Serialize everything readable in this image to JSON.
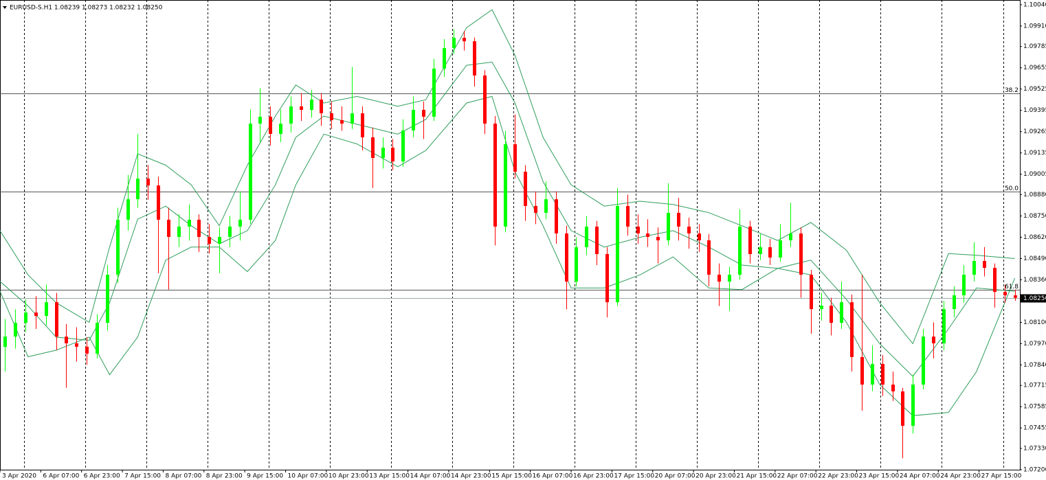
{
  "chart_data": {
    "type": "candlestick",
    "title": "EURUSD-S.H1  1.08239 1.08273 1.08232 1.08250",
    "up_color": "#00ff00",
    "down_color": "#ff0000",
    "band_color": "#2e9d5b",
    "xlim": [
      0,
      400
    ],
    "ylim": [
      1.072,
      1.10069
    ],
    "x": [
      2,
      6,
      10,
      14,
      18,
      22,
      26,
      30,
      34,
      38,
      42,
      46,
      50,
      54,
      58,
      62,
      66,
      70,
      74,
      78,
      82,
      86,
      90,
      94,
      98,
      102,
      106,
      110,
      114,
      118,
      122,
      126,
      130,
      134,
      138,
      142,
      146,
      150,
      154,
      158,
      162,
      166,
      170,
      174,
      178,
      182,
      186,
      190,
      194,
      198,
      202,
      206,
      210,
      214,
      218,
      222,
      226,
      230,
      234,
      238,
      242,
      246,
      250,
      254,
      258,
      262,
      266,
      270,
      274,
      278,
      282,
      286,
      290,
      294,
      298,
      302,
      306,
      310,
      314,
      318,
      322,
      326,
      330,
      334,
      338,
      342,
      346,
      350,
      354,
      358,
      362,
      366,
      370,
      374,
      378,
      382,
      386,
      390,
      394,
      398
    ],
    "candles": [
      [
        1.0795,
        1.0812,
        1.078,
        1.08013
      ],
      [
        1.08013,
        1.0818,
        1.0794,
        1.08097
      ],
      [
        1.08097,
        1.0824,
        1.0804,
        1.0816
      ],
      [
        1.0816,
        1.0826,
        1.0806,
        1.08139
      ],
      [
        1.08139,
        1.0833,
        1.0808,
        1.08223
      ],
      [
        1.08223,
        1.0828,
        1.0793,
        1.08013
      ],
      [
        1.08013,
        1.0809,
        1.077,
        1.07972
      ],
      [
        1.07972,
        1.0807,
        1.0786,
        1.07951
      ],
      [
        1.07951,
        1.0801,
        1.0784,
        1.07909
      ],
      [
        1.07909,
        1.0815,
        1.0788,
        1.08097
      ],
      [
        1.08097,
        1.0845,
        1.0805,
        1.08391
      ],
      [
        1.08391,
        1.088,
        1.0834,
        1.08727
      ],
      [
        1.08727,
        1.09,
        1.0866,
        1.08852
      ],
      [
        1.08852,
        1.0925,
        1.088,
        1.08978
      ],
      [
        1.08978,
        1.0906,
        1.0885,
        1.08936
      ],
      [
        1.08936,
        1.0899,
        1.084,
        1.08727
      ],
      [
        1.08727,
        1.088,
        1.083,
        1.08622
      ],
      [
        1.08622,
        1.0876,
        1.0856,
        1.08685
      ],
      [
        1.08685,
        1.0882,
        1.086,
        1.08727
      ],
      [
        1.08727,
        1.0876,
        1.0853,
        1.08622
      ],
      [
        1.08622,
        1.087,
        1.0852,
        1.0858
      ],
      [
        1.0858,
        1.0868,
        1.084,
        1.08622
      ],
      [
        1.08622,
        1.0875,
        1.0856,
        1.08685
      ],
      [
        1.08685,
        1.089,
        1.086,
        1.08727
      ],
      [
        1.08727,
        1.094,
        1.087,
        1.09314
      ],
      [
        1.09314,
        1.0953,
        1.092,
        1.09356
      ],
      [
        1.09356,
        1.0942,
        1.0918,
        1.09251
      ],
      [
        1.09251,
        1.094,
        1.092,
        1.09314
      ],
      [
        1.09314,
        1.0948,
        1.0926,
        1.09419
      ],
      [
        1.09419,
        1.095,
        1.0933,
        1.09398
      ],
      [
        1.09398,
        1.0952,
        1.0935,
        1.09461
      ],
      [
        1.09461,
        1.095,
        1.093,
        1.09377
      ],
      [
        1.09377,
        1.0945,
        1.0928,
        1.09335
      ],
      [
        1.09335,
        1.0942,
        1.0927,
        1.09314
      ],
      [
        1.09314,
        1.0966,
        1.0928,
        1.09377
      ],
      [
        1.09377,
        1.0942,
        1.0915,
        1.0923
      ],
      [
        1.0923,
        1.0929,
        1.0892,
        1.09104
      ],
      [
        1.09104,
        1.0923,
        1.0904,
        1.09167
      ],
      [
        1.09167,
        1.0922,
        1.0903,
        1.09083
      ],
      [
        1.09083,
        1.0934,
        1.0905,
        1.09272
      ],
      [
        1.09272,
        1.0948,
        1.0923,
        1.09398
      ],
      [
        1.09398,
        1.0945,
        1.0922,
        1.09356
      ],
      [
        1.09356,
        1.0971,
        1.0933,
        1.0965
      ],
      [
        1.0965,
        1.0983,
        1.096,
        1.09775
      ],
      [
        1.09775,
        1.0989,
        1.0974,
        1.09838
      ],
      [
        1.09838,
        1.0988,
        1.0976,
        1.09817
      ],
      [
        1.09817,
        1.0984,
        1.0954,
        1.09608
      ],
      [
        1.09608,
        1.0964,
        1.0925,
        1.09314
      ],
      [
        1.09314,
        1.0936,
        1.0857,
        1.08685
      ],
      [
        1.08685,
        1.0927,
        1.0865,
        1.09188
      ],
      [
        1.09188,
        1.0937,
        1.0898,
        1.0902
      ],
      [
        1.0902,
        1.0906,
        1.0872,
        1.08811
      ],
      [
        1.08811,
        1.089,
        1.087,
        1.08769
      ],
      [
        1.08769,
        1.0896,
        1.0873,
        1.08852
      ],
      [
        1.08852,
        1.089,
        1.0858,
        1.08643
      ],
      [
        1.08643,
        1.0869,
        1.0818,
        1.08349
      ],
      [
        1.08349,
        1.0862,
        1.0832,
        1.08559
      ],
      [
        1.08559,
        1.0875,
        1.0851,
        1.08685
      ],
      [
        1.08685,
        1.0872,
        1.0845,
        1.08517
      ],
      [
        1.08517,
        1.0856,
        1.0813,
        1.08223
      ],
      [
        1.08223,
        1.0892,
        1.082,
        1.08811
      ],
      [
        1.08811,
        1.0888,
        1.0863,
        1.08685
      ],
      [
        1.08685,
        1.0876,
        1.0858,
        1.08643
      ],
      [
        1.08643,
        1.0873,
        1.0856,
        1.08622
      ],
      [
        1.08622,
        1.0868,
        1.0846,
        1.08601
      ],
      [
        1.08601,
        1.0895,
        1.0857,
        1.08769
      ],
      [
        1.08769,
        1.0886,
        1.086,
        1.08685
      ],
      [
        1.08685,
        1.0874,
        1.0855,
        1.08643
      ],
      [
        1.08643,
        1.087,
        1.0853,
        1.08601
      ],
      [
        1.08601,
        1.0864,
        1.0832,
        1.08391
      ],
      [
        1.08391,
        1.0846,
        1.082,
        1.08349
      ],
      [
        1.08349,
        1.0844,
        1.0817,
        1.08391
      ],
      [
        1.08391,
        1.0879,
        1.0836,
        1.08685
      ],
      [
        1.08685,
        1.0872,
        1.0846,
        1.08517
      ],
      [
        1.08517,
        1.0864,
        1.0848,
        1.08559
      ],
      [
        1.08559,
        1.0861,
        1.0845,
        1.08496
      ],
      [
        1.08496,
        1.087,
        1.0847,
        1.08601
      ],
      [
        1.08601,
        1.0883,
        1.0856,
        1.08643
      ],
      [
        1.08643,
        1.0868,
        1.0825,
        1.08391
      ],
      [
        1.08391,
        1.0842,
        1.0803,
        1.08181
      ],
      [
        1.08181,
        1.0828,
        1.0811,
        1.08202
      ],
      [
        1.08202,
        1.0825,
        1.0802,
        1.08097
      ],
      [
        1.08097,
        1.0835,
        1.0806,
        1.08223
      ],
      [
        1.08223,
        1.0827,
        1.078,
        1.07888
      ],
      [
        1.07888,
        1.0839,
        1.0756,
        1.0772
      ],
      [
        1.0772,
        1.0796,
        1.0768,
        1.07846
      ],
      [
        1.07846,
        1.079,
        1.0765,
        1.0772
      ],
      [
        1.0772,
        1.078,
        1.0762,
        1.07678
      ],
      [
        1.07678,
        1.077,
        1.0727,
        1.07468
      ],
      [
        1.07468,
        1.0778,
        1.0742,
        1.0772
      ],
      [
        1.0772,
        1.0806,
        1.0769,
        1.08013
      ],
      [
        1.08013,
        1.081,
        1.0788,
        1.07972
      ],
      [
        1.07972,
        1.0823,
        1.0793,
        1.08181
      ],
      [
        1.08181,
        1.0832,
        1.0813,
        1.08265
      ],
      [
        1.08265,
        1.0845,
        1.0822,
        1.08391
      ],
      [
        1.08391,
        1.0859,
        1.0835,
        1.08475
      ],
      [
        1.08475,
        1.0856,
        1.0838,
        1.08433
      ],
      [
        1.08433,
        1.0846,
        1.0819,
        1.08286
      ],
      [
        1.08286,
        1.0833,
        1.0822,
        1.08265
      ],
      [
        1.08265,
        1.083,
        1.08232,
        1.0825
      ]
    ],
    "line_x": [
      0,
      11,
      22,
      35,
      43,
      54,
      65,
      75,
      86,
      97,
      108,
      116,
      127,
      140,
      156,
      167,
      183,
      193,
      202,
      213,
      224,
      237,
      251,
      264,
      278,
      291,
      305,
      318,
      332,
      345,
      358,
      372,
      383,
      398
    ],
    "lines": [
      {
        "values": [
          1.0866,
          1.0839,
          1.0822,
          1.081,
          1.0856,
          1.0913,
          1.0906,
          1.0894,
          1.0869,
          1.0906,
          1.0936,
          1.0955,
          1.0944,
          1.0948,
          1.0942,
          1.0946,
          1.099,
          1.1001,
          1.0973,
          1.0923,
          1.0894,
          1.0881,
          1.0884,
          1.0882,
          1.0877,
          1.0869,
          1.086,
          1.0871,
          1.0854,
          1.0822,
          1.0797,
          1.0852,
          1.0851,
          1.0849
        ]
      },
      {
        "values": [
          1.0835,
          1.082,
          1.0801,
          1.0799,
          1.0822,
          1.0873,
          1.0881,
          1.0869,
          1.0858,
          1.0866,
          1.0894,
          1.0923,
          1.0936,
          1.0931,
          1.0925,
          1.0934,
          1.0967,
          1.0969,
          1.0944,
          1.0896,
          1.0866,
          1.0856,
          1.0862,
          1.0866,
          1.0856,
          1.0845,
          1.0843,
          1.0848,
          1.0824,
          1.0797,
          1.0777,
          1.0806,
          1.0831,
          1.0829
        ]
      },
      {
        "values": [
          1.0829,
          1.0789,
          1.0793,
          1.0801,
          1.0778,
          1.0801,
          1.0848,
          1.0856,
          1.0856,
          1.0841,
          1.086,
          1.0894,
          1.0925,
          1.0919,
          1.0905,
          1.0915,
          1.0944,
          1.0948,
          1.0902,
          1.0869,
          1.0831,
          1.0831,
          1.0839,
          1.085,
          1.0831,
          1.083,
          1.0843,
          1.0839,
          1.081,
          1.0772,
          1.0753,
          1.0755,
          1.078,
          1.0837
        ]
      }
    ],
    "levels": [
      {
        "value": 1.095,
        "label": "38.2"
      },
      {
        "value": 1.089,
        "label": "50.0"
      },
      {
        "value": 1.083,
        "label": "61.8"
      }
    ],
    "current_price": {
      "value": 1.0825,
      "label": "1.08250"
    },
    "xgrid": [
      9.4,
      33.4,
      57.4,
      81.4,
      105.4,
      129.4,
      153.4,
      177.4,
      201.4,
      225.4,
      249.4,
      273.4,
      297.4,
      321.4,
      345.4,
      369.4,
      393.4
    ],
    "yticks": [
      {
        "value": 1.1004,
        "label": "1.10040"
      },
      {
        "value": 1.0991,
        "label": "1.09910"
      },
      {
        "value": 1.09785,
        "label": "1.09785"
      },
      {
        "value": 1.09655,
        "label": "1.09655"
      },
      {
        "value": 1.09525,
        "label": "1.09525"
      },
      {
        "value": 1.09395,
        "label": "1.09395"
      },
      {
        "value": 1.09265,
        "label": "1.09265"
      },
      {
        "value": 1.09135,
        "label": "1.09135"
      },
      {
        "value": 1.09005,
        "label": "1.09005"
      },
      {
        "value": 1.0888,
        "label": "1.08880"
      },
      {
        "value": 1.0875,
        "label": "1.08750"
      },
      {
        "value": 1.0862,
        "label": "1.08620"
      },
      {
        "value": 1.0849,
        "label": "1.08490"
      },
      {
        "value": 1.0836,
        "label": "1.08360"
      },
      {
        "value": 1.081,
        "label": "1.08100"
      },
      {
        "value": 1.0797,
        "label": "1.07970"
      },
      {
        "value": 1.0784,
        "label": "1.07840"
      },
      {
        "value": 1.07715,
        "label": "1.07715"
      },
      {
        "value": 1.07585,
        "label": "1.07585"
      },
      {
        "value": 1.07455,
        "label": "1.07455"
      },
      {
        "value": 1.0733,
        "label": "1.07330"
      },
      {
        "value": 1.072,
        "label": "1.07200"
      }
    ],
    "xticks": [
      {
        "value": 0,
        "label": "3 Apr 2020"
      },
      {
        "value": 16,
        "label": "6 Apr 07:00"
      },
      {
        "value": 32,
        "label": "6 Apr 23:00"
      },
      {
        "value": 48,
        "label": "7 Apr 15:00"
      },
      {
        "value": 64,
        "label": "8 Apr 07:00"
      },
      {
        "value": 80,
        "label": "8 Apr 23:00"
      },
      {
        "value": 96,
        "label": "9 Apr 15:00"
      },
      {
        "value": 112,
        "label": "10 Apr 07:00"
      },
      {
        "value": 128,
        "label": "10 Apr 23:00"
      },
      {
        "value": 144,
        "label": "13 Apr 15:00"
      },
      {
        "value": 160,
        "label": "14 Apr 07:00"
      },
      {
        "value": 176,
        "label": "14 Apr 23:00"
      },
      {
        "value": 192,
        "label": "15 Apr 15:00"
      },
      {
        "value": 208,
        "label": "16 Apr 07:00"
      },
      {
        "value": 224,
        "label": "16 Apr 23:00"
      },
      {
        "value": 240,
        "label": "17 Apr 15:00"
      },
      {
        "value": 256,
        "label": "20 Apr 07:00"
      },
      {
        "value": 272,
        "label": "20 Apr 23:00"
      },
      {
        "value": 288,
        "label": "21 Apr 15:00"
      },
      {
        "value": 304,
        "label": "22 Apr 07:00"
      },
      {
        "value": 320,
        "label": "22 Apr 23:00"
      },
      {
        "value": 336,
        "label": "23 Apr 15:00"
      },
      {
        "value": 352,
        "label": "24 Apr 07:00"
      },
      {
        "value": 368,
        "label": "24 Apr 23:00"
      },
      {
        "value": 384,
        "label": "27 Apr 15:00"
      }
    ]
  }
}
